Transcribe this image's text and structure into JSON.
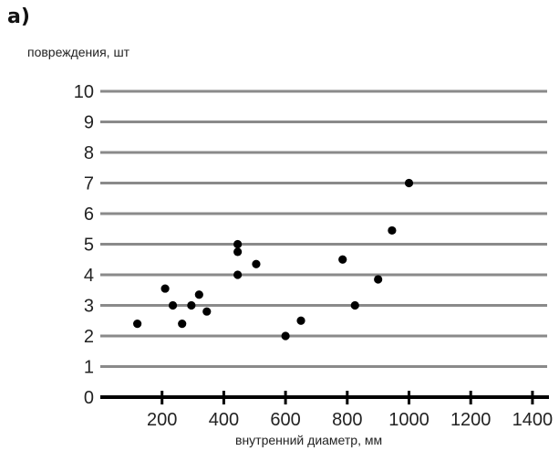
{
  "panel_label": "а)",
  "chart_data": {
    "type": "scatter",
    "title": "",
    "ylabel": "повреждения, шт",
    "xlabel": "внутренний диаметр, мм",
    "xlim": [
      0,
      1450
    ],
    "ylim": [
      0,
      10
    ],
    "x_ticks": [
      200,
      400,
      600,
      800,
      1000,
      1200,
      1400
    ],
    "y_ticks": [
      0,
      1,
      2,
      3,
      4,
      5,
      6,
      7,
      8,
      9,
      10
    ],
    "grid": true,
    "points": [
      {
        "x": 120,
        "y": 2.4
      },
      {
        "x": 210,
        "y": 3.55
      },
      {
        "x": 235,
        "y": 3.0
      },
      {
        "x": 265,
        "y": 2.4
      },
      {
        "x": 295,
        "y": 3.0
      },
      {
        "x": 320,
        "y": 3.35
      },
      {
        "x": 345,
        "y": 2.8
      },
      {
        "x": 445,
        "y": 5.0
      },
      {
        "x": 445,
        "y": 4.75
      },
      {
        "x": 445,
        "y": 4.0
      },
      {
        "x": 505,
        "y": 4.35
      },
      {
        "x": 600,
        "y": 2.0
      },
      {
        "x": 650,
        "y": 2.5
      },
      {
        "x": 785,
        "y": 4.5
      },
      {
        "x": 825,
        "y": 3.0
      },
      {
        "x": 900,
        "y": 3.85
      },
      {
        "x": 945,
        "y": 5.45
      },
      {
        "x": 1000,
        "y": 7.0
      }
    ]
  }
}
